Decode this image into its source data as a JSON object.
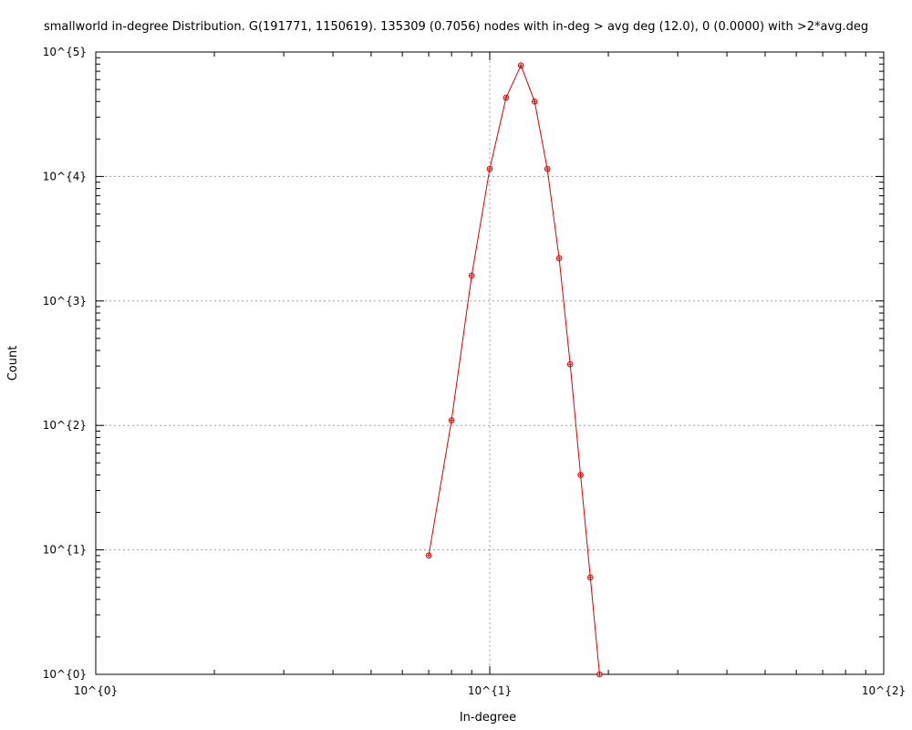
{
  "chart_data": {
    "type": "line",
    "title": "smallworld in-degree Distribution. G(191771, 1150619). 135309 (0.7056) nodes with in-deg > avg deg (12.0), 0 (0.0000) with >2*avg.deg",
    "xlabel": "In-degree",
    "ylabel": "Count",
    "xscale": "log",
    "yscale": "log",
    "xlim": [
      1,
      100
    ],
    "ylim": [
      1,
      100000
    ],
    "x_tick_labels": [
      "10^{0}",
      "10^{1}",
      "10^{2}"
    ],
    "y_tick_labels": [
      "10^{0}",
      "10^{1}",
      "10^{2}",
      "10^{3}",
      "10^{4}",
      "10^{5}"
    ],
    "grid": true,
    "legend": false,
    "series": [
      {
        "color": "#e00000",
        "marker": "circle-plus",
        "x": [
          7,
          8,
          9,
          10,
          11,
          12,
          13,
          14,
          15,
          16,
          17,
          18,
          19
        ],
        "y": [
          9,
          110,
          1600,
          11500,
          43000,
          78000,
          40000,
          11500,
          2200,
          310,
          40,
          6,
          1
        ]
      }
    ]
  }
}
